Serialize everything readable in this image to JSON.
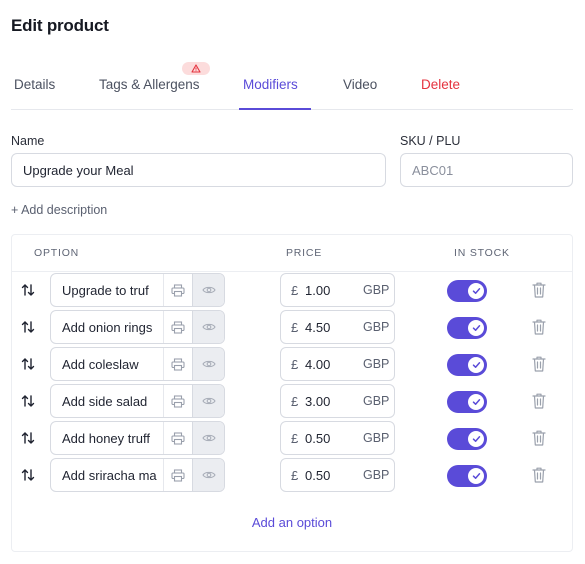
{
  "page": {
    "title": "Edit product"
  },
  "tabs": [
    {
      "label": "Details"
    },
    {
      "label": "Tags & Allergens",
      "badge_icon": "warning-triangle-icon"
    },
    {
      "label": "Modifiers",
      "active": true
    },
    {
      "label": "Video"
    },
    {
      "label": "Delete",
      "danger": true
    }
  ],
  "form": {
    "name_label": "Name",
    "name_value": "Upgrade your Meal",
    "sku_label": "SKU / PLU",
    "sku_placeholder": "ABC01",
    "add_description": "+ Add description"
  },
  "table": {
    "headers": {
      "option": "OPTION",
      "price": "PRICE",
      "in_stock": "IN STOCK"
    },
    "rows": [
      {
        "name": "Upgrade to truf",
        "currency_symbol": "£",
        "price": "1.00",
        "currency": "GBP",
        "in_stock": true
      },
      {
        "name": "Add onion rings",
        "currency_symbol": "£",
        "price": "4.50",
        "currency": "GBP",
        "in_stock": true
      },
      {
        "name": "Add coleslaw",
        "currency_symbol": "£",
        "price": "4.00",
        "currency": "GBP",
        "in_stock": true
      },
      {
        "name": "Add side salad",
        "currency_symbol": "£",
        "price": "3.00",
        "currency": "GBP",
        "in_stock": true
      },
      {
        "name": "Add honey truff",
        "currency_symbol": "£",
        "price": "0.50",
        "currency": "GBP",
        "in_stock": true
      },
      {
        "name": "Add sriracha ma",
        "currency_symbol": "£",
        "price": "0.50",
        "currency": "GBP",
        "in_stock": true
      }
    ],
    "add_option_label": "Add an option"
  },
  "colors": {
    "accent": "#5a4bd8",
    "danger": "#e5333f",
    "badge_bg": "#fcdcdc"
  }
}
